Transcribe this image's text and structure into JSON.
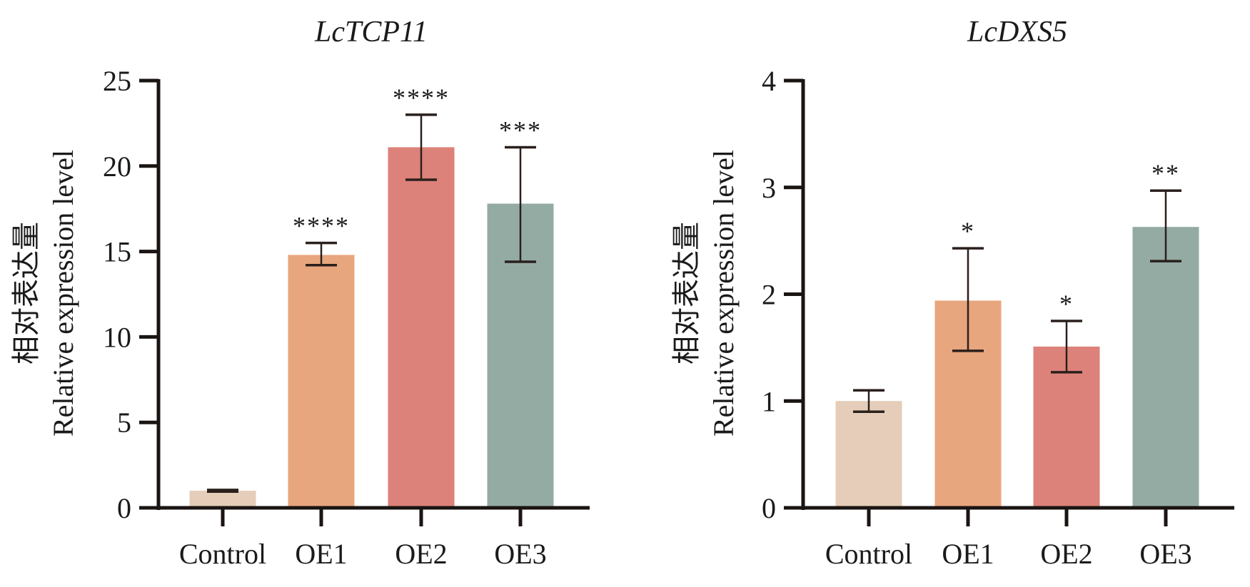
{
  "chart_data": [
    {
      "type": "bar",
      "title": "LcTCP11",
      "xlabel": "",
      "ylabel": "Relative expression level",
      "ylabel_cn": "相对表达量",
      "categories": [
        "Control",
        "OE1",
        "OE2",
        "OE3"
      ],
      "values": [
        1.0,
        14.8,
        21.1,
        17.8
      ],
      "error_low": [
        0.95,
        14.2,
        19.2,
        14.4
      ],
      "error_high": [
        1.05,
        15.5,
        23.0,
        21.1
      ],
      "significance": [
        "",
        "****",
        "****",
        "***"
      ],
      "ylim": [
        0,
        25
      ],
      "yticks": [
        0,
        5,
        10,
        15,
        20,
        25
      ],
      "colors": [
        "#e5cdb9",
        "#e8a67e",
        "#dc827a",
        "#94aba4"
      ],
      "grid": false,
      "legend": "none"
    },
    {
      "type": "bar",
      "title": "LcDXS5",
      "xlabel": "",
      "ylabel": "Relative expression level",
      "ylabel_cn": "相对表达量",
      "categories": [
        "Control",
        "OE1",
        "OE2",
        "OE3"
      ],
      "values": [
        1.0,
        1.94,
        1.51,
        2.63
      ],
      "error_low": [
        0.9,
        1.47,
        1.27,
        2.31
      ],
      "error_high": [
        1.1,
        2.43,
        1.75,
        2.97
      ],
      "significance": [
        "",
        "*",
        "*",
        "**"
      ],
      "ylim": [
        0,
        4
      ],
      "yticks": [
        0,
        1,
        2,
        3,
        4
      ],
      "colors": [
        "#e5cdb9",
        "#e8a67e",
        "#dc827a",
        "#94aba4"
      ],
      "grid": false,
      "legend": "none"
    }
  ]
}
